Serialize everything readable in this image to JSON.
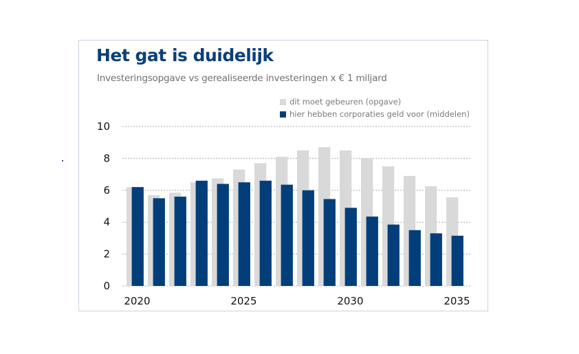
{
  "title": "Het gat is duidelijk",
  "subtitle": "Investeringsopgave vs gerealiseerde investeringen x € 1 miljard",
  "legend": [
    {
      "label": "dit moet gebeuren (opgave)",
      "color": "#d9d9d9"
    },
    {
      "label": "hier hebben corporaties geld voor (middelen)",
      "color": "#023f7a"
    }
  ],
  "chart_data": {
    "type": "bar",
    "title": "Het gat is duidelijk",
    "subtitle": "Investeringsopgave vs gerealiseerde investeringen x € 1 miljard",
    "xlabel": "",
    "ylabel": "",
    "ylim": [
      0,
      10
    ],
    "yticks": [
      0,
      2,
      4,
      6,
      8,
      10
    ],
    "grid": true,
    "legend_position": "top-right",
    "categories": [
      2020,
      2021,
      2022,
      2023,
      2024,
      2025,
      2026,
      2027,
      2028,
      2029,
      2030,
      2031,
      2032,
      2033,
      2034,
      2035
    ],
    "xtick_labels": [
      {
        "index": 0,
        "label": "2020"
      },
      {
        "index": 5,
        "label": "2025"
      },
      {
        "index": 10,
        "label": "2030"
      },
      {
        "index": 15,
        "label": "2035"
      }
    ],
    "series": [
      {
        "name": "dit moet gebeuren (opgave)",
        "color": "#d9d9d9",
        "values": [
          6.2,
          5.7,
          5.85,
          6.5,
          6.75,
          7.3,
          7.7,
          8.1,
          8.5,
          8.7,
          8.5,
          8.0,
          7.5,
          6.9,
          6.25,
          5.55
        ]
      },
      {
        "name": "hier hebben corporaties geld voor (middelen)",
        "color": "#023f7a",
        "values": [
          6.2,
          5.5,
          5.6,
          6.6,
          6.4,
          6.5,
          6.6,
          6.35,
          6.0,
          5.45,
          4.9,
          4.35,
          3.85,
          3.5,
          3.3,
          3.15
        ]
      }
    ]
  }
}
